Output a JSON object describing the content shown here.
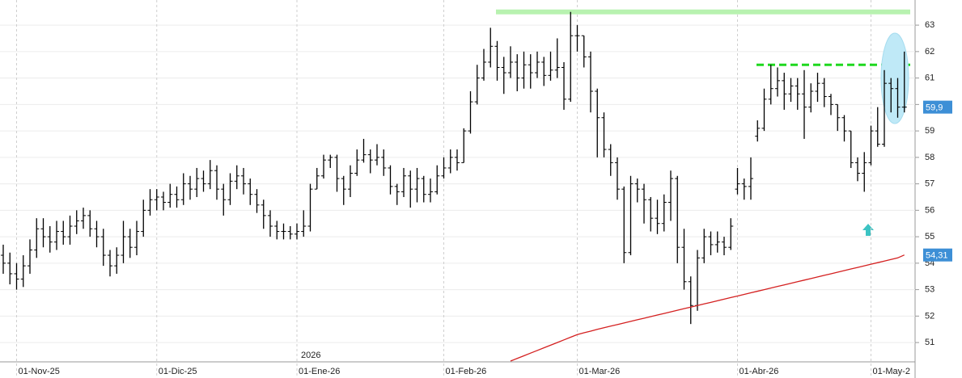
{
  "chart_data": {
    "type": "ohlc",
    "categories": [
      null,
      null,
      "01-Nov-25",
      null,
      null,
      null,
      null,
      null,
      null,
      null,
      null,
      null,
      null,
      null,
      null,
      null,
      null,
      null,
      null,
      null,
      null,
      null,
      null,
      "01-Dic-25",
      null,
      null,
      null,
      null,
      null,
      null,
      null,
      null,
      null,
      null,
      null,
      null,
      null,
      null,
      null,
      null,
      null,
      null,
      null,
      null,
      "01-Ene-26",
      null,
      null,
      null,
      null,
      null,
      null,
      null,
      null,
      null,
      null,
      null,
      null,
      null,
      null,
      null,
      null,
      null,
      null,
      null,
      null,
      null,
      "01-Feb-26",
      null,
      null,
      null,
      null,
      null,
      null,
      null,
      null,
      null,
      null,
      null,
      null,
      null,
      null,
      null,
      null,
      null,
      null,
      null,
      "01-Mar-26",
      null,
      null,
      null,
      null,
      null,
      null,
      null,
      null,
      null,
      null,
      null,
      null,
      null,
      null,
      null,
      null,
      null,
      null,
      null,
      null,
      null,
      null,
      null,
      "01-Abr-26",
      null,
      null,
      null,
      null,
      null,
      null,
      null,
      null,
      null,
      null,
      null,
      null,
      null,
      null,
      null,
      null,
      null,
      null,
      null,
      "01-May-2",
      null,
      null,
      null,
      null,
      null
    ],
    "ohlc": {
      "color": "#000000",
      "open": [
        54.3,
        54.0,
        53.6,
        53.4,
        53.9,
        54.5,
        55.3,
        55.0,
        54.8,
        55.2,
        55.0,
        55.4,
        55.6,
        55.8,
        55.3,
        55.0,
        54.3,
        53.9,
        54.3,
        55.0,
        54.6,
        55.2,
        56.0,
        56.4,
        56.5,
        56.3,
        56.6,
        56.4,
        57.0,
        56.8,
        57.2,
        57.0,
        57.5,
        56.8,
        56.4,
        57.1,
        57.3,
        57.0,
        56.6,
        56.2,
        55.8,
        55.4,
        55.2,
        55.2,
        55.1,
        55.2,
        55.4,
        56.8,
        57.3,
        57.9,
        58.0,
        57.2,
        56.8,
        57.4,
        57.9,
        58.1,
        57.9,
        58.0,
        57.6,
        56.9,
        56.7,
        57.3,
        56.8,
        57.2,
        56.6,
        56.7,
        57.3,
        57.6,
        58.0,
        57.8,
        59.0,
        60.1,
        61.0,
        61.6,
        62.2,
        61.4,
        61.2,
        61.6,
        61.0,
        61.5,
        61.2,
        61.6,
        61.1,
        61.3,
        61.4,
        60.2,
        62.6,
        62.6,
        61.8,
        60.5,
        59.5,
        58.3,
        57.8,
        56.8,
        54.4,
        57.0,
        56.8,
        56.4,
        55.7,
        55.5,
        56.3,
        57.2,
        54.6,
        53.3,
        52.4,
        54.2,
        55.0,
        54.7,
        54.8,
        54.6,
        56.8,
        57.0,
        56.9,
        58.8,
        59.1,
        60.2,
        60.6,
        60.9,
        60.4,
        60.7,
        60.4,
        59.9,
        60.5,
        60.8,
        60.3,
        60.0,
        59.5,
        59.0,
        57.8,
        57.4,
        57.8,
        59.0,
        58.5,
        60.8,
        60.6,
        59.9
      ],
      "high": [
        54.7,
        54.4,
        54.0,
        54.3,
        54.9,
        55.7,
        55.7,
        55.4,
        55.6,
        55.6,
        55.8,
        56.0,
        56.1,
        56.0,
        55.6,
        55.3,
        54.5,
        54.6,
        55.6,
        55.3,
        55.6,
        56.4,
        56.8,
        56.8,
        56.7,
        57.0,
        56.9,
        57.4,
        57.3,
        57.6,
        57.5,
        57.9,
        57.7,
        57.0,
        57.4,
        57.7,
        57.6,
        57.2,
        56.8,
        56.4,
        56.0,
        55.6,
        55.5,
        55.4,
        55.5,
        56.0,
        57.0,
        57.6,
        58.1,
        58.1,
        58.1,
        57.3,
        57.7,
        58.3,
        58.7,
        58.3,
        58.5,
        58.3,
        57.7,
        57.0,
        57.6,
        57.5,
        57.6,
        57.3,
        57.2,
        57.7,
        58.0,
        58.3,
        58.3,
        59.1,
        60.5,
        61.5,
        62.1,
        62.9,
        62.4,
        61.8,
        62.2,
        61.9,
        62.0,
        61.9,
        62.0,
        61.8,
        62.0,
        62.5,
        61.6,
        63.5,
        63.0,
        62.6,
        62.0,
        60.6,
        59.7,
        58.5,
        58.0,
        56.9,
        57.3,
        57.2,
        57.0,
        56.5,
        56.4,
        56.6,
        57.5,
        57.3,
        55.3,
        53.5,
        54.5,
        55.3,
        55.2,
        55.2,
        55.0,
        55.7,
        57.6,
        57.2,
        58.0,
        59.4,
        60.6,
        61.5,
        61.4,
        61.2,
        61.0,
        61.0,
        61.3,
        60.8,
        61.2,
        61.0,
        60.4,
        60.0,
        59.6,
        59.0,
        58.0,
        58.2,
        59.2,
        59.9,
        61.3,
        61.0,
        61.0,
        62.0
      ],
      "low": [
        53.6,
        53.2,
        53.0,
        53.1,
        53.6,
        54.2,
        54.6,
        54.4,
        54.5,
        54.7,
        54.7,
        55.1,
        55.3,
        55.0,
        54.6,
        53.9,
        53.5,
        53.6,
        54.0,
        54.2,
        54.3,
        55.0,
        55.8,
        56.0,
        56.0,
        56.1,
        56.1,
        56.2,
        56.4,
        56.5,
        56.7,
        56.8,
        56.4,
        55.8,
        56.2,
        56.8,
        56.6,
        56.2,
        55.9,
        55.3,
        55.0,
        54.9,
        54.9,
        54.9,
        54.9,
        55.0,
        55.2,
        56.8,
        57.2,
        57.6,
        56.7,
        56.2,
        56.5,
        57.3,
        57.8,
        57.4,
        57.7,
        57.3,
        56.6,
        56.2,
        56.5,
        56.1,
        56.3,
        56.3,
        56.3,
        56.6,
        57.2,
        57.4,
        57.5,
        57.8,
        58.9,
        60.0,
        60.9,
        61.4,
        60.9,
        60.4,
        61.0,
        60.5,
        60.6,
        60.6,
        61.0,
        60.7,
        60.9,
        61.0,
        59.8,
        60.1,
        62.0,
        61.4,
        59.7,
        58.0,
        58.0,
        57.3,
        56.4,
        54.0,
        54.3,
        56.3,
        55.5,
        55.2,
        55.1,
        55.2,
        55.6,
        54.0,
        53.0,
        51.7,
        52.2,
        54.0,
        54.3,
        54.4,
        54.3,
        54.5,
        56.6,
        56.4,
        56.4,
        58.6,
        59.0,
        60.0,
        60.3,
        59.8,
        60.1,
        59.8,
        58.7,
        59.7,
        60.1,
        59.9,
        59.6,
        59.0,
        58.6,
        57.6,
        57.1,
        56.7,
        57.7,
        58.4,
        58.4,
        59.7,
        59.5,
        59.7
      ],
      "close": [
        54.0,
        53.6,
        53.4,
        53.9,
        54.5,
        55.3,
        55.0,
        54.8,
        55.2,
        55.0,
        55.4,
        55.6,
        55.8,
        55.3,
        55.0,
        54.3,
        53.9,
        54.3,
        55.0,
        54.6,
        55.2,
        56.0,
        56.4,
        56.5,
        56.3,
        56.6,
        56.4,
        57.0,
        56.8,
        57.2,
        57.0,
        57.5,
        56.8,
        56.4,
        57.1,
        57.3,
        57.0,
        56.6,
        56.2,
        55.8,
        55.4,
        55.2,
        55.2,
        55.1,
        55.2,
        55.4,
        56.8,
        57.3,
        57.9,
        58.0,
        57.2,
        56.8,
        57.4,
        57.9,
        58.1,
        57.9,
        58.0,
        57.6,
        56.9,
        56.7,
        57.3,
        56.8,
        57.2,
        56.6,
        56.7,
        57.3,
        57.6,
        58.0,
        57.8,
        59.0,
        60.1,
        61.0,
        61.6,
        62.2,
        61.4,
        61.2,
        61.6,
        61.0,
        61.5,
        61.2,
        61.6,
        61.1,
        61.3,
        61.4,
        60.2,
        62.6,
        62.6,
        61.8,
        60.5,
        59.5,
        58.3,
        57.8,
        56.8,
        54.4,
        57.0,
        56.8,
        56.4,
        55.7,
        55.5,
        56.3,
        57.2,
        54.6,
        53.3,
        52.4,
        54.2,
        55.0,
        54.7,
        54.8,
        54.6,
        55.4,
        57.0,
        56.9,
        57.2,
        59.1,
        60.2,
        60.6,
        60.9,
        60.4,
        60.7,
        60.4,
        59.9,
        60.5,
        60.8,
        60.3,
        60.0,
        59.5,
        59.0,
        57.8,
        57.4,
        57.8,
        59.0,
        58.5,
        60.8,
        60.6,
        59.9,
        59.9
      ]
    },
    "moving_average": {
      "color": "#d42020",
      "values": [
        null,
        null,
        null,
        null,
        null,
        null,
        null,
        null,
        null,
        null,
        null,
        null,
        null,
        null,
        null,
        null,
        null,
        null,
        null,
        null,
        null,
        null,
        null,
        null,
        null,
        null,
        null,
        null,
        null,
        null,
        null,
        null,
        null,
        null,
        null,
        null,
        null,
        null,
        null,
        null,
        null,
        null,
        null,
        null,
        null,
        null,
        null,
        null,
        null,
        null,
        null,
        null,
        null,
        null,
        null,
        null,
        null,
        null,
        null,
        null,
        null,
        null,
        null,
        null,
        null,
        null,
        null,
        null,
        null,
        null,
        null,
        null,
        null,
        null,
        null,
        null,
        50.3,
        50.4,
        50.5,
        50.6,
        50.7,
        50.8,
        50.9,
        51.0,
        51.1,
        51.2,
        51.3,
        51.37,
        51.43,
        51.5,
        51.56,
        51.62,
        51.68,
        51.74,
        51.8,
        51.86,
        51.92,
        51.98,
        52.04,
        52.1,
        52.16,
        52.22,
        52.28,
        52.34,
        52.4,
        52.46,
        52.52,
        52.58,
        52.64,
        52.7,
        52.76,
        52.82,
        52.88,
        52.94,
        53.0,
        53.06,
        53.12,
        53.18,
        53.24,
        53.3,
        53.36,
        53.42,
        53.48,
        53.54,
        53.6,
        53.66,
        53.72,
        53.78,
        53.84,
        53.9,
        53.96,
        54.02,
        54.08,
        54.14,
        54.2,
        54.31
      ]
    },
    "horizontal_lines": [
      {
        "value": 63.5,
        "color": "#b8f2b0",
        "style": "solid"
      },
      {
        "value": 61.5,
        "color": "#1ed81e",
        "style": "dashed"
      }
    ],
    "price_markers": [
      {
        "value": 59.9,
        "label": "59,9",
        "color": "#3d8fd6"
      },
      {
        "value": 54.31,
        "label": "54,31",
        "color": "#3d8fd6"
      }
    ],
    "year_label": "2026",
    "ylim": [
      50.27,
      63.95
    ],
    "yticks": [
      51,
      52,
      53,
      54,
      55,
      56,
      57,
      58,
      59,
      60,
      61,
      62,
      63
    ],
    "grid": true
  }
}
